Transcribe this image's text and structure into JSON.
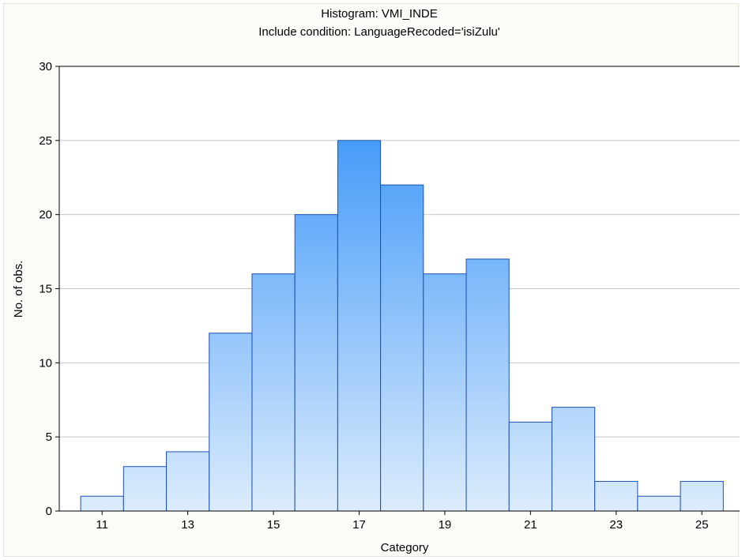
{
  "chart_data": {
    "type": "bar",
    "title": "Histogram: VMI_INDE",
    "subtitle": "Include condition: LanguageRecoded='isiZulu'",
    "xlabel": "Category",
    "ylabel": "No. of obs.",
    "categories": [
      11,
      12,
      13,
      14,
      15,
      16,
      17,
      18,
      19,
      20,
      21,
      22,
      23,
      24,
      25
    ],
    "values": [
      1,
      3,
      4,
      12,
      16,
      20,
      25,
      22,
      16,
      17,
      6,
      7,
      2,
      1,
      2
    ],
    "x_tick_labels": [
      "11",
      "13",
      "15",
      "17",
      "19",
      "21",
      "23",
      "25"
    ],
    "y_tick_labels": [
      "0",
      "5",
      "10",
      "15",
      "20",
      "25",
      "30"
    ],
    "ylim": [
      0,
      30
    ],
    "y_ticks": [
      0,
      5,
      10,
      15,
      20,
      25,
      30
    ],
    "grid": true,
    "colors": {
      "bar_top": "#2a8cf8",
      "bar_bottom": "#dcecfc",
      "bar_edge": "#1f4fb4",
      "grid": "#c8c8c8",
      "plot_background": "#ffffff",
      "frame_background": "#fcfcf8"
    }
  }
}
